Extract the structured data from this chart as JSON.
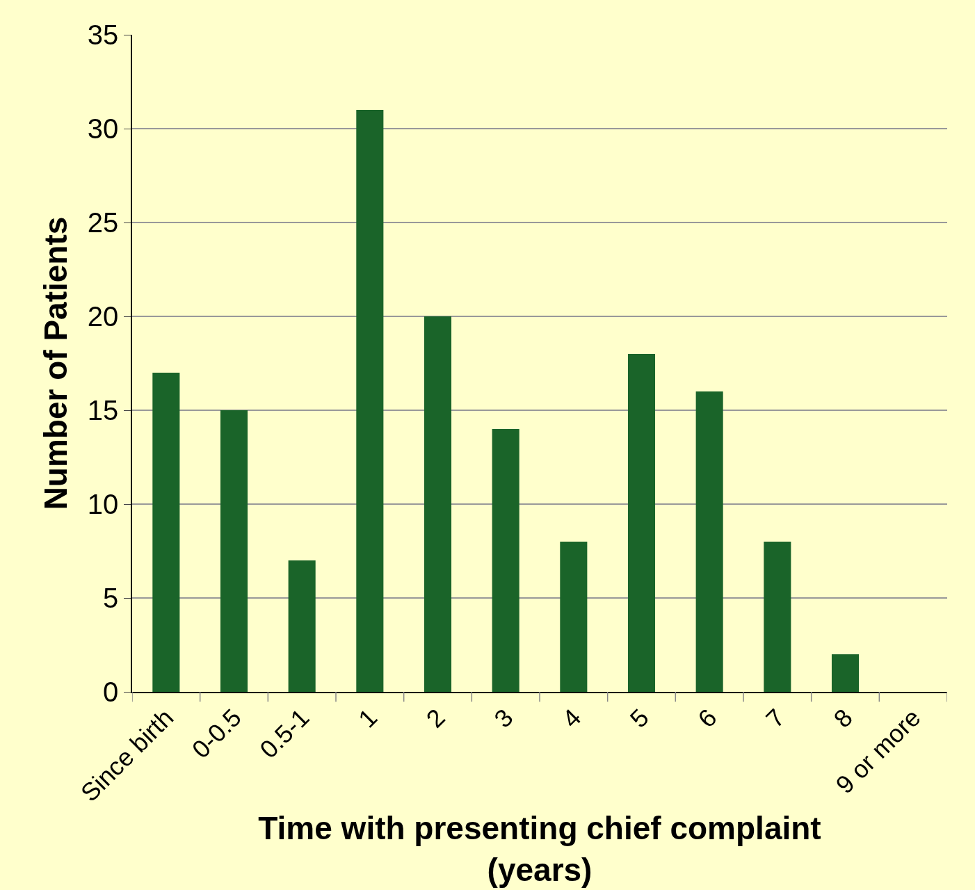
{
  "chart_data": {
    "type": "bar",
    "xlabel": "Time with presenting chief complaint (years)",
    "ylabel": "Number of Patients",
    "categories": [
      "Since birth",
      "0-0.5",
      "0.5-1",
      "1",
      "2",
      "3",
      "4",
      "5",
      "6",
      "7",
      "8",
      "9 or more"
    ],
    "values": [
      17,
      15,
      7,
      31,
      20,
      14,
      8,
      18,
      16,
      8,
      2,
      null
    ],
    "color": "#1a6429",
    "ylim": [
      0,
      35
    ],
    "yticks": [
      0,
      5,
      10,
      15,
      20,
      25,
      30,
      35
    ],
    "grid": "y"
  }
}
